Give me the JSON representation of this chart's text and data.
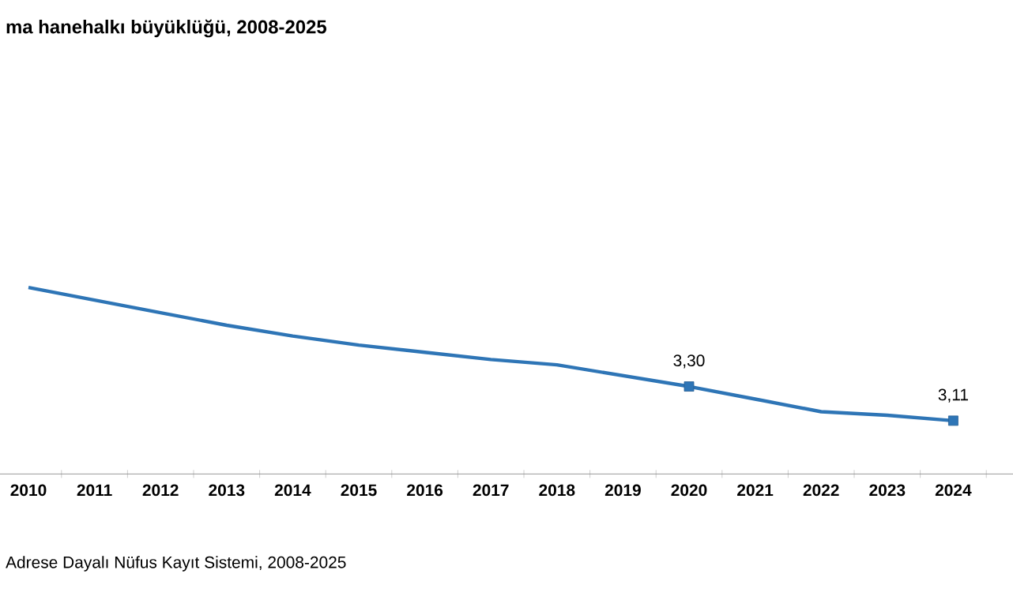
{
  "chart_data": {
    "type": "line",
    "title": "ma hanehalkı büyüklüğü, 2008-2025",
    "categories": [
      "2010",
      "2011",
      "2012",
      "2013",
      "2014",
      "2015",
      "2016",
      "2017",
      "2018",
      "2019",
      "2020",
      "2021",
      "2022",
      "2023",
      "2024"
    ],
    "series": [
      {
        "color": "#2e75b6",
        "values": [
          3.85,
          3.78,
          3.71,
          3.64,
          3.58,
          3.53,
          3.49,
          3.45,
          3.42,
          3.36,
          3.3,
          3.23,
          3.16,
          3.14,
          3.11
        ],
        "value_labels": [
          null,
          null,
          null,
          null,
          null,
          null,
          null,
          null,
          null,
          null,
          "3,30",
          null,
          null,
          null,
          "3,11"
        ]
      }
    ],
    "line_style": "solid",
    "annotations": [
      "Adrese Dayalı Nüfus Kayıt Sistemi, 2008-2025"
    ]
  }
}
